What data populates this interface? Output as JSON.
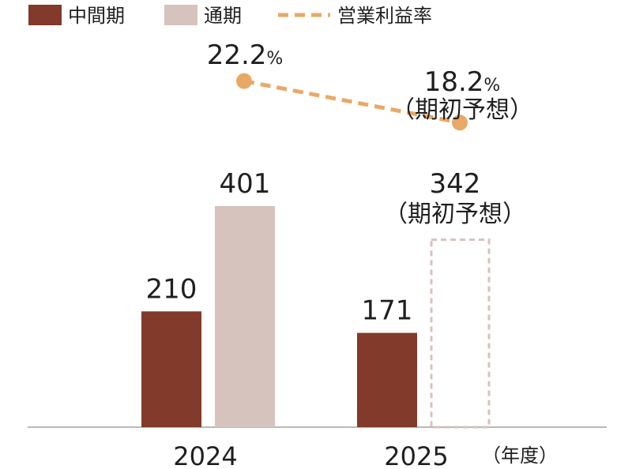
{
  "chart_data": {
    "type": "bar",
    "categories": [
      "2024",
      "2025"
    ],
    "x_unit": "（年度）",
    "series": [
      {
        "name": "中間期",
        "values": [
          210,
          171
        ],
        "color": "#823a2a"
      },
      {
        "name": "通期",
        "values": [
          401,
          342
        ],
        "color": "#d6c3bd",
        "forecast": [
          false,
          true
        ]
      }
    ],
    "line_series": {
      "name": "営業利益率",
      "values": [
        22.2,
        18.2
      ],
      "unit": "%",
      "color": "#e8a967",
      "style": "dashed"
    },
    "forecast_note": "（期初予想）",
    "bar_labels": {
      "interim": [
        "210",
        "171"
      ],
      "full": [
        "401",
        "342"
      ]
    },
    "line_labels": [
      "22.2",
      "18.2"
    ],
    "legend": {
      "items": [
        "中間期",
        "通期",
        "営業利益率"
      ],
      "placement": "top-left"
    },
    "ylim": [
      0,
      500
    ],
    "grid": false
  }
}
